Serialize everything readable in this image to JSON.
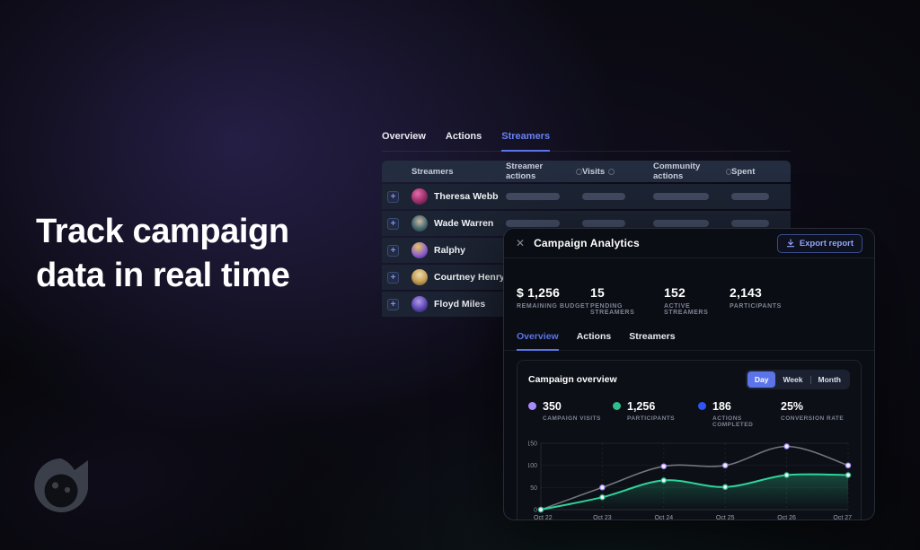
{
  "colors": {
    "accent_blue": "#5b74e8",
    "accent_blue_light": "#94a4fb",
    "green": "#2fbe8a",
    "purple": "#a78bfa",
    "legend_blue": "#2f56f5",
    "gray_line": "#70767f"
  },
  "hero": {
    "line1": "Track campaign",
    "line2": "data in real time"
  },
  "icons": {
    "close": "✕",
    "expand": "+"
  },
  "streamers_table": {
    "tabs": [
      {
        "label": "Overview",
        "active": false
      },
      {
        "label": "Actions",
        "active": false
      },
      {
        "label": "Streamers",
        "active": true
      }
    ],
    "columns": [
      {
        "label": "Streamers",
        "info": false
      },
      {
        "label": "Streamer actions",
        "info": true
      },
      {
        "label": "Visits",
        "info": true
      },
      {
        "label": "Community actions",
        "info": true
      },
      {
        "label": "Spent",
        "info": false
      }
    ],
    "rows": [
      {
        "name": "Theresa Webb",
        "avatar_css": "radial-gradient(circle at 38% 32%, #e56caa 0%, #a23473 48%, #361228 100%)"
      },
      {
        "name": "Wade Warren",
        "avatar_css": "radial-gradient(circle at 50% 38%, #cdbba2 0%, #4a6a72 55%, #1b2e37 100%)"
      },
      {
        "name": "Ralphy",
        "avatar_css": "radial-gradient(circle at 40% 28%, #e9c95f 0%, #8a5ad0 60%, #2d1a4f 100%)"
      },
      {
        "name": "Courtney Henry",
        "avatar_css": "radial-gradient(circle at 50% 34%, #f1dba9 0%, #c9a45e 50%, #6a4a27 100%)"
      },
      {
        "name": "Floyd Miles",
        "avatar_css": "radial-gradient(circle at 45% 34%, #b39ae9 0%, #5a48b1 55%, #1d1745 100%)"
      }
    ]
  },
  "modal": {
    "title": "Campaign Analytics",
    "export_button": {
      "label": "Export report"
    },
    "stats": [
      {
        "value": "$ 1,256",
        "label": "REMAINING BUDGET"
      },
      {
        "value": "15",
        "label": "PENDING STREAMERS"
      },
      {
        "value": "152",
        "label": "ACTIVE STREAMERS"
      },
      {
        "value": "2,143",
        "label": "PARTICIPANTS"
      }
    ],
    "tabs": [
      {
        "label": "Overview",
        "active": true
      },
      {
        "label": "Actions",
        "active": false
      },
      {
        "label": "Streamers",
        "active": false
      }
    ],
    "card": {
      "title": "Campaign overview",
      "range_options": [
        {
          "label": "Day",
          "active": true
        },
        {
          "label": "Week",
          "active": false
        },
        {
          "label": "Month",
          "active": false
        }
      ],
      "legend": [
        {
          "value": "350",
          "label": "CAMPAIGN VISITS",
          "dot": "#a78bfa"
        },
        {
          "value": "1,256",
          "label": "PARTICIPANTS",
          "dot": "#2fbe8a"
        },
        {
          "value": "186",
          "label": "ACTIONS COMPLETED",
          "dot": "#2f56f5"
        },
        {
          "value": "25%",
          "label": "CONVERSION RATE",
          "dot": null
        }
      ]
    }
  },
  "chart_data": {
    "type": "line",
    "title": "Campaign overview",
    "x": [
      "Oct 22",
      "Oct 23",
      "Oct 24",
      "Oct 25",
      "Oct 26",
      "Oct 27"
    ],
    "yticks": [
      0,
      50,
      100,
      150
    ],
    "ylim": [
      0,
      155
    ],
    "grid": "vertical-dashed",
    "legend_position": "top",
    "series": [
      {
        "name": "Campaign visits",
        "values": [
          0,
          50,
          98,
          100,
          143,
          100
        ],
        "line_color": "#70767f",
        "marker_ring": "#a78bfa",
        "area": false
      },
      {
        "name": "Participants",
        "values": [
          0,
          28,
          66,
          51,
          78,
          78
        ],
        "line_color": "#2fd39a",
        "marker_ring": "#2fbe8a",
        "area": true,
        "area_color": "#2fbe8a"
      }
    ]
  }
}
